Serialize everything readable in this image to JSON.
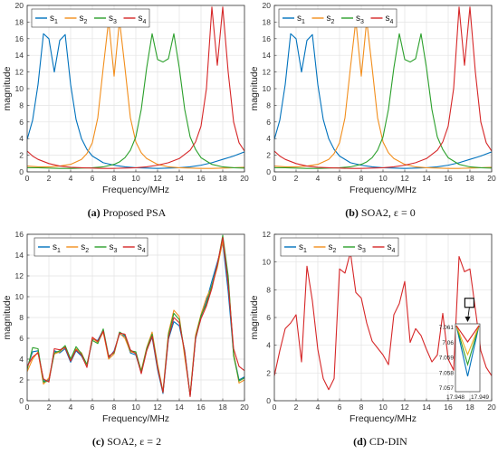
{
  "colors": {
    "s1": "#0072BD",
    "s2": "#EDB120",
    "s2_orange": "#F28E1C",
    "s3": "#2CA02C",
    "s4": "#D62728"
  },
  "chart_data": [
    {
      "panel": "a",
      "type": "line",
      "caption": "(a) Proposed PSA",
      "caption_bold": "(a)",
      "caption_rest": " Proposed PSA",
      "xlabel": "Frequency/MHz",
      "ylabel": "magnitude",
      "xlim": [
        0,
        20
      ],
      "ylim": [
        0,
        20
      ],
      "xticks": [
        0,
        2,
        4,
        6,
        8,
        10,
        12,
        14,
        16,
        18,
        20
      ],
      "yticks": [
        0,
        2,
        4,
        6,
        8,
        10,
        12,
        14,
        16,
        18,
        20
      ],
      "legend": [
        "s",
        "s",
        "s",
        "s"
      ],
      "legend_sub": [
        "1",
        "2",
        "3",
        "4"
      ],
      "legend_position": "top-left",
      "grid": true,
      "series": [
        {
          "name": "s1",
          "colorKey": "s1",
          "x": [
            0,
            0.5,
            1,
            1.5,
            2,
            2.5,
            3,
            3.5,
            4,
            4.5,
            5,
            5.5,
            6,
            7,
            8,
            9,
            10,
            11,
            12,
            13,
            14,
            15,
            16,
            17,
            18,
            19,
            20
          ],
          "y": [
            3.9,
            6.2,
            10.5,
            16.6,
            16.0,
            12.0,
            15.8,
            16.5,
            10.5,
            6.3,
            4.0,
            2.7,
            1.9,
            1.1,
            0.8,
            0.6,
            0.5,
            0.45,
            0.42,
            0.45,
            0.5,
            0.6,
            0.8,
            1.1,
            1.5,
            1.9,
            2.4
          ]
        },
        {
          "name": "s2",
          "colorKey": "s2_orange",
          "x": [
            0,
            1,
            2,
            3,
            4,
            5,
            5.5,
            6,
            6.5,
            7,
            7.5,
            8,
            8.5,
            9,
            9.5,
            10,
            10.5,
            11,
            12,
            13,
            14,
            15,
            16,
            17,
            18,
            19,
            20
          ],
          "y": [
            0.7,
            0.6,
            0.6,
            0.7,
            0.9,
            1.5,
            2.2,
            3.5,
            6.5,
            12.5,
            18.2,
            11.5,
            18.2,
            12.5,
            6.5,
            3.6,
            2.3,
            1.6,
            0.9,
            0.6,
            0.5,
            0.45,
            0.42,
            0.42,
            0.45,
            0.5,
            0.55
          ]
        },
        {
          "name": "s3",
          "colorKey": "s3",
          "x": [
            0,
            1,
            2,
            3,
            4,
            5,
            6,
            7,
            8,
            8.5,
            9,
            9.5,
            10,
            10.5,
            11,
            11.5,
            12,
            12.5,
            13,
            13.5,
            14,
            14.5,
            15,
            15.5,
            16,
            17,
            18,
            19,
            20
          ],
          "y": [
            0.5,
            0.5,
            0.45,
            0.42,
            0.42,
            0.45,
            0.5,
            0.6,
            0.9,
            1.2,
            1.7,
            2.6,
            4.2,
            7.5,
            12.5,
            16.6,
            13.5,
            13.2,
            13.6,
            16.6,
            12.5,
            7.5,
            4.2,
            2.7,
            1.7,
            0.9,
            0.6,
            0.5,
            0.45
          ]
        },
        {
          "name": "s4",
          "colorKey": "s4",
          "x": [
            0,
            0.5,
            1,
            2,
            3,
            4,
            5,
            6,
            7,
            8,
            9,
            10,
            11,
            12,
            13,
            14,
            15,
            15.5,
            16,
            16.5,
            17,
            17.5,
            18,
            18.5,
            19,
            19.5,
            20
          ],
          "y": [
            2.5,
            1.9,
            1.5,
            1.0,
            0.7,
            0.55,
            0.5,
            0.45,
            0.42,
            0.42,
            0.45,
            0.5,
            0.6,
            0.8,
            1.1,
            1.6,
            2.6,
            3.6,
            5.5,
            10.0,
            19.8,
            12.8,
            19.8,
            12.0,
            6.0,
            3.5,
            2.5
          ]
        }
      ]
    },
    {
      "panel": "b",
      "type": "line",
      "caption": "(b) SOA2, ε = 0",
      "caption_bold": "(b)",
      "caption_rest": " SOA2, ε = 0",
      "xlabel": "Frequency/MHz",
      "ylabel": "magnitude",
      "xlim": [
        0,
        20
      ],
      "ylim": [
        0,
        20
      ],
      "xticks": [
        0,
        2,
        4,
        6,
        8,
        10,
        12,
        14,
        16,
        18,
        20
      ],
      "yticks": [
        0,
        2,
        4,
        6,
        8,
        10,
        12,
        14,
        16,
        18,
        20
      ],
      "legend": [
        "s",
        "s",
        "s",
        "s"
      ],
      "legend_sub": [
        "1",
        "2",
        "3",
        "4"
      ],
      "legend_position": "top-left",
      "grid": true,
      "series": [
        {
          "name": "s1",
          "colorKey": "s1",
          "x": [
            0,
            0.5,
            1,
            1.5,
            2,
            2.5,
            3,
            3.5,
            4,
            4.5,
            5,
            5.5,
            6,
            7,
            8,
            9,
            10,
            11,
            12,
            13,
            14,
            15,
            16,
            17,
            18,
            19,
            20
          ],
          "y": [
            3.9,
            6.2,
            10.5,
            16.6,
            16.0,
            12.0,
            15.8,
            16.5,
            10.5,
            6.3,
            4.0,
            2.7,
            1.9,
            1.1,
            0.8,
            0.6,
            0.5,
            0.45,
            0.42,
            0.45,
            0.5,
            0.6,
            0.8,
            1.1,
            1.5,
            1.9,
            2.4
          ]
        },
        {
          "name": "s2",
          "colorKey": "s2_orange",
          "x": [
            0,
            1,
            2,
            3,
            4,
            5,
            5.5,
            6,
            6.5,
            7,
            7.5,
            8,
            8.5,
            9,
            9.5,
            10,
            10.5,
            11,
            12,
            13,
            14,
            15,
            16,
            17,
            18,
            19,
            20
          ],
          "y": [
            0.7,
            0.6,
            0.6,
            0.7,
            0.9,
            1.5,
            2.2,
            3.5,
            6.5,
            12.5,
            18.2,
            11.5,
            18.2,
            12.5,
            6.5,
            3.6,
            2.3,
            1.6,
            0.9,
            0.6,
            0.5,
            0.45,
            0.42,
            0.42,
            0.45,
            0.5,
            0.55
          ]
        },
        {
          "name": "s3",
          "colorKey": "s3",
          "x": [
            0,
            1,
            2,
            3,
            4,
            5,
            6,
            7,
            8,
            8.5,
            9,
            9.5,
            10,
            10.5,
            11,
            11.5,
            12,
            12.5,
            13,
            13.5,
            14,
            14.5,
            15,
            15.5,
            16,
            17,
            18,
            19,
            20
          ],
          "y": [
            0.5,
            0.5,
            0.45,
            0.42,
            0.42,
            0.45,
            0.5,
            0.6,
            0.9,
            1.2,
            1.7,
            2.6,
            4.2,
            7.5,
            12.5,
            16.6,
            13.5,
            13.2,
            13.6,
            16.6,
            12.5,
            7.5,
            4.2,
            2.7,
            1.7,
            0.9,
            0.6,
            0.5,
            0.45
          ]
        },
        {
          "name": "s4",
          "colorKey": "s4",
          "x": [
            0,
            0.5,
            1,
            2,
            3,
            4,
            5,
            6,
            7,
            8,
            9,
            10,
            11,
            12,
            13,
            14,
            15,
            15.5,
            16,
            16.5,
            17,
            17.5,
            18,
            18.5,
            19,
            19.5,
            20
          ],
          "y": [
            2.5,
            1.9,
            1.5,
            1.0,
            0.7,
            0.55,
            0.5,
            0.45,
            0.42,
            0.42,
            0.45,
            0.5,
            0.6,
            0.8,
            1.1,
            1.6,
            2.6,
            3.6,
            5.5,
            10.0,
            19.8,
            12.8,
            19.8,
            12.0,
            6.0,
            3.5,
            2.5
          ]
        }
      ]
    },
    {
      "panel": "c",
      "type": "line",
      "caption": "(c) SOA2, ε = 2",
      "caption_bold": "(c)",
      "caption_rest": " SOA2, ε = 2",
      "xlabel": "Frequency/MHz",
      "ylabel": "magnitude",
      "xlim": [
        0,
        20
      ],
      "ylim": [
        0,
        16
      ],
      "xticks": [
        0,
        2,
        4,
        6,
        8,
        10,
        12,
        14,
        16,
        18,
        20
      ],
      "yticks": [
        0,
        2,
        4,
        6,
        8,
        10,
        12,
        14,
        16
      ],
      "legend": [
        "s",
        "s",
        "s",
        "s"
      ],
      "legend_sub": [
        "1",
        "2",
        "3",
        "4"
      ],
      "legend_position": "top",
      "grid": true,
      "base_x": [
        0,
        0.5,
        1,
        1.5,
        2,
        2.5,
        3,
        3.5,
        4,
        4.5,
        5,
        5.5,
        6,
        6.5,
        7,
        7.5,
        8,
        8.5,
        9,
        9.5,
        10,
        10.5,
        11,
        11.5,
        12,
        12.5,
        13,
        13.5,
        14,
        14.5,
        15,
        15.5,
        16,
        16.5,
        17,
        17.5,
        18,
        18.5,
        19,
        19.5,
        20
      ],
      "series": [
        {
          "name": "s1",
          "colorKey": "s1",
          "y": [
            3.2,
            4.7,
            4.8,
            1.9,
            2.0,
            4.8,
            4.6,
            5.0,
            3.7,
            4.8,
            4.3,
            3.3,
            5.9,
            5.8,
            6.8,
            4.1,
            4.8,
            6.4,
            6.2,
            4.6,
            4.4,
            2.7,
            4.9,
            6.1,
            3.0,
            0.7,
            5.9,
            7.6,
            7.2,
            4.8,
            0.5,
            5.9,
            8.1,
            9.6,
            11.5,
            13.3,
            15.2,
            10.5,
            4.5,
            2.0,
            2.3
          ]
        },
        {
          "name": "s2",
          "colorKey": "s2_orange",
          "y": [
            2.8,
            4.0,
            4.7,
            1.6,
            2.2,
            4.5,
            4.7,
            5.2,
            3.9,
            5.0,
            4.6,
            3.4,
            6.0,
            5.6,
            6.6,
            4.0,
            4.5,
            6.5,
            6.0,
            4.7,
            4.6,
            2.9,
            5.1,
            6.6,
            3.5,
            0.9,
            6.5,
            8.7,
            8.1,
            4.2,
            0.6,
            6.3,
            8.3,
            9.9,
            11.0,
            12.8,
            15.3,
            11.8,
            4.6,
            1.7,
            2.0
          ]
        },
        {
          "name": "s3",
          "colorKey": "s3",
          "y": [
            3.0,
            5.1,
            5.0,
            1.8,
            1.9,
            4.6,
            4.8,
            5.3,
            4.0,
            5.2,
            4.5,
            3.5,
            5.8,
            5.5,
            6.9,
            4.3,
            4.6,
            6.6,
            6.3,
            4.8,
            4.7,
            2.8,
            5.0,
            6.4,
            3.3,
            0.8,
            6.3,
            8.4,
            7.8,
            4.6,
            0.5,
            6.1,
            8.2,
            9.3,
            11.1,
            13.0,
            15.9,
            12.0,
            4.3,
            1.9,
            2.2
          ]
        },
        {
          "name": "s4",
          "colorKey": "s4",
          "y": [
            3.3,
            4.2,
            4.6,
            2.1,
            1.8,
            5.0,
            4.9,
            5.1,
            3.8,
            4.9,
            4.4,
            3.2,
            6.1,
            5.7,
            6.7,
            4.2,
            4.7,
            6.5,
            6.4,
            4.9,
            4.5,
            2.6,
            4.8,
            6.2,
            3.2,
            0.8,
            6.0,
            8.0,
            7.5,
            4.7,
            0.4,
            6.0,
            7.9,
            9.1,
            10.8,
            13.1,
            15.7,
            11.2,
            5.0,
            3.3,
            2.9
          ]
        }
      ]
    },
    {
      "panel": "d",
      "type": "line",
      "caption": "(d) CD-DIN",
      "caption_bold": "(d)",
      "caption_rest": " CD-DIN",
      "xlabel": "Frequency/MHz",
      "ylabel": "magnitude",
      "xlim": [
        0,
        20
      ],
      "ylim": [
        0,
        12
      ],
      "xticks": [
        0,
        2,
        4,
        6,
        8,
        10,
        12,
        14,
        16,
        18,
        20
      ],
      "yticks": [
        0,
        2,
        4,
        6,
        8,
        10,
        12
      ],
      "legend": [
        "s",
        "s",
        "s",
        "s"
      ],
      "legend_sub": [
        "1",
        "2",
        "3",
        "4"
      ],
      "legend_position": "top",
      "grid": true,
      "series": [
        {
          "name": "s4",
          "colorKey": "s4",
          "x": [
            0,
            0.5,
            1,
            1.5,
            2,
            2.5,
            3,
            3.5,
            4,
            4.5,
            5,
            5.5,
            6,
            6.5,
            7,
            7.5,
            8,
            8.5,
            9,
            9.5,
            10,
            10.5,
            11,
            11.5,
            12,
            12.5,
            13,
            13.5,
            14,
            14.5,
            15,
            15.5,
            16,
            16.5,
            17,
            17.5,
            18,
            18.5,
            19,
            19.5,
            20
          ],
          "y": [
            1.8,
            3.6,
            5.2,
            5.6,
            6.2,
            2.8,
            9.7,
            7.2,
            3.7,
            1.6,
            0.8,
            1.6,
            9.5,
            9.2,
            10.7,
            7.8,
            7.4,
            5.6,
            4.3,
            3.8,
            3.3,
            2.6,
            6.2,
            7.0,
            8.6,
            4.2,
            5.2,
            4.7,
            3.7,
            2.8,
            3.3,
            6.3,
            3.0,
            2.2,
            10.4,
            9.3,
            9.5,
            6.6,
            3.6,
            2.4,
            1.8
          ]
        }
      ],
      "inset": {
        "xticks": [
          "17.948",
          "17.949"
        ],
        "yticks": [
          "7.061",
          "7.06",
          "7.059",
          "7.058",
          "7.057"
        ],
        "ylim": [
          7.057,
          7.061
        ]
      }
    }
  ]
}
